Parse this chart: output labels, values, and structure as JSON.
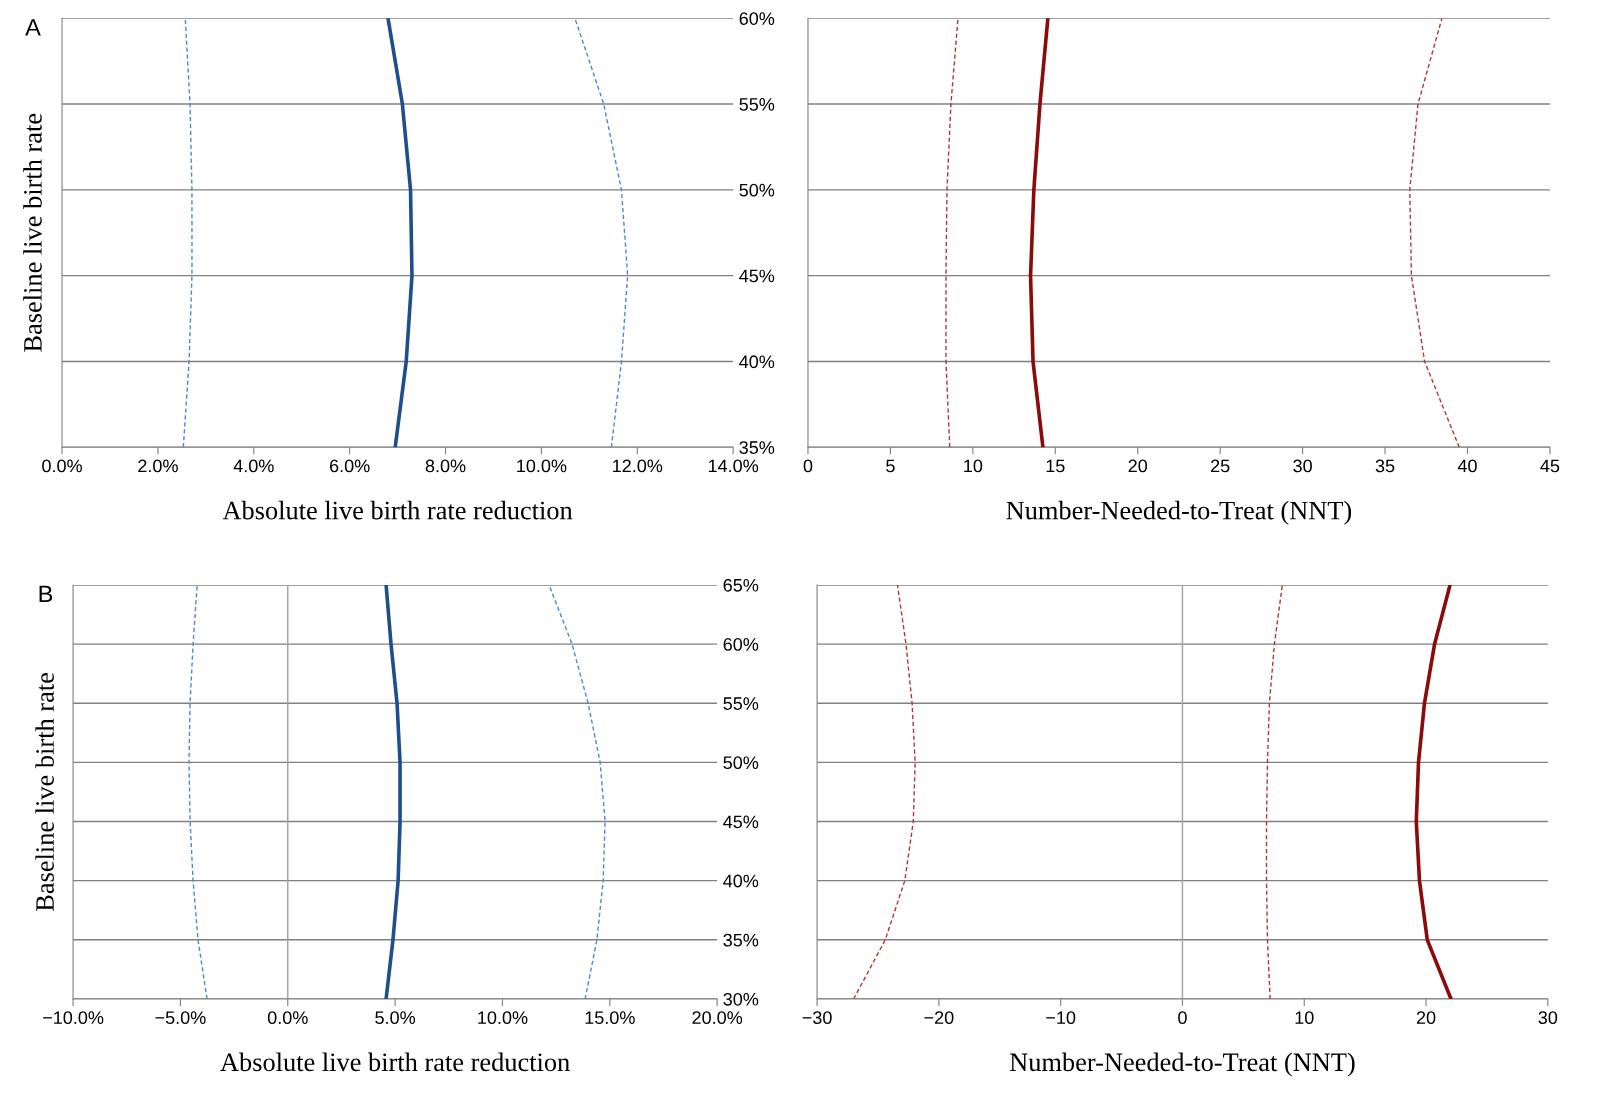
{
  "chart_data": [
    {
      "type": "line",
      "xlabel": "Absolute live birth rate reduction",
      "ylabel": "Baseline live birth rate",
      "annotations": [
        "A"
      ],
      "grid": "y",
      "xlim": [
        0,
        14
      ],
      "ylim": [
        35,
        60
      ],
      "xticks": [
        {
          "value": 0,
          "label": "0.0%"
        },
        {
          "value": 2,
          "label": "2.0%"
        },
        {
          "value": 4,
          "label": "4.0%"
        },
        {
          "value": 6,
          "label": "6.0%"
        },
        {
          "value": 8,
          "label": "8.0%"
        },
        {
          "value": 10,
          "label": "10.0%"
        },
        {
          "value": 12,
          "label": "12.0%"
        },
        {
          "value": 14,
          "label": "14.0%"
        }
      ],
      "yticks": [
        {
          "value": 35,
          "label": "35%"
        },
        {
          "value": 40,
          "label": "40%"
        },
        {
          "value": 45,
          "label": "45%"
        },
        {
          "value": 50,
          "label": "50%"
        },
        {
          "value": 55,
          "label": "55%"
        },
        {
          "value": 60,
          "label": "60%"
        }
      ],
      "series": [
        {
          "color": "#1f4e8c",
          "line_style": "solid",
          "x": [
            6.95,
            7.18,
            7.3,
            7.27,
            7.1,
            6.8
          ],
          "values": [
            35,
            40,
            45,
            50,
            55,
            60
          ]
        },
        {
          "color": "#4a86d8",
          "line_style": "dashed",
          "x": [
            2.53,
            2.65,
            2.71,
            2.71,
            2.67,
            2.57
          ],
          "values": [
            35,
            40,
            45,
            50,
            55,
            60
          ]
        },
        {
          "color": "#4a86d8",
          "line_style": "dashed",
          "x": [
            11.46,
            11.67,
            11.8,
            11.67,
            11.3,
            10.7
          ],
          "values": [
            35,
            40,
            45,
            50,
            55,
            60
          ]
        }
      ]
    },
    {
      "type": "line",
      "xlabel": "Number-Needed-to-Treat (NNT)",
      "grid": "y",
      "tick_labels": "x",
      "xlim": [
        0,
        45
      ],
      "ylim": [
        35,
        60
      ],
      "xticks": [
        0,
        5,
        10,
        15,
        20,
        25,
        30,
        35,
        40,
        45
      ],
      "yticks": [
        35,
        40,
        45,
        50,
        55,
        60
      ],
      "series": [
        {
          "color": "#8b0a0a",
          "line_style": "solid",
          "x": [
            14.25,
            13.65,
            13.5,
            13.7,
            14.07,
            14.55
          ],
          "values": [
            35,
            40,
            45,
            50,
            55,
            60
          ]
        },
        {
          "color": "#b83232",
          "line_style": "dashed",
          "x": [
            8.6,
            8.37,
            8.37,
            8.43,
            8.67,
            9.1
          ],
          "values": [
            35,
            40,
            45,
            50,
            55,
            60
          ]
        },
        {
          "color": "#b83232",
          "line_style": "dashed",
          "x": [
            39.5,
            37.4,
            36.6,
            36.5,
            37.0,
            38.45
          ],
          "values": [
            35,
            40,
            45,
            50,
            55,
            60
          ]
        }
      ]
    },
    {
      "type": "line",
      "xlabel": "Absolute live birth rate reduction",
      "ylabel": "Baseline live birth rate",
      "annotations": [
        "B"
      ],
      "grid": "y",
      "xlim": [
        -10,
        20
      ],
      "ylim": [
        30,
        65
      ],
      "xticks": [
        {
          "value": -10,
          "label": "−10.0%"
        },
        {
          "value": -5,
          "label": "−5.0%"
        },
        {
          "value": 0,
          "label": "0.0%"
        },
        {
          "value": 5,
          "label": "5.0%"
        },
        {
          "value": 10,
          "label": "10.0%"
        },
        {
          "value": 15,
          "label": "15.0%"
        },
        {
          "value": 20,
          "label": "20.0%"
        }
      ],
      "yticks": [
        {
          "value": 30,
          "label": "30%"
        },
        {
          "value": 35,
          "label": "35%"
        },
        {
          "value": 40,
          "label": "40%"
        },
        {
          "value": 45,
          "label": "45%"
        },
        {
          "value": 50,
          "label": "50%"
        },
        {
          "value": 55,
          "label": "55%"
        },
        {
          "value": 60,
          "label": "60%"
        },
        {
          "value": 65,
          "label": "65%"
        }
      ],
      "ref_lines": [
        {
          "axis": "x",
          "value": 0,
          "color": "#a0a0a0"
        }
      ],
      "series": [
        {
          "color": "#1f4e8c",
          "line_style": "solid",
          "x": [
            4.58,
            4.9,
            5.14,
            5.23,
            5.23,
            5.09,
            4.81,
            4.58
          ],
          "values": [
            30,
            35,
            40,
            45,
            50,
            55,
            60,
            65
          ]
        },
        {
          "color": "#4a86d8",
          "line_style": "dashed",
          "x": [
            -3.76,
            -4.18,
            -4.41,
            -4.55,
            -4.6,
            -4.55,
            -4.41,
            -4.22
          ],
          "values": [
            30,
            35,
            40,
            45,
            50,
            55,
            60,
            65
          ]
        },
        {
          "color": "#4a86d8",
          "line_style": "dashed",
          "x": [
            13.85,
            14.4,
            14.69,
            14.78,
            14.55,
            13.99,
            13.24,
            12.17
          ],
          "values": [
            30,
            35,
            40,
            45,
            50,
            55,
            60,
            65
          ]
        }
      ]
    },
    {
      "type": "line",
      "xlabel": "Number-Needed-to-Treat (NNT)",
      "grid": "y",
      "tick_labels": "x",
      "xlim": [
        -30,
        30
      ],
      "ylim": [
        30,
        65
      ],
      "xticks": [
        {
          "value": -30,
          "label": "−30"
        },
        {
          "value": -20,
          "label": "−20"
        },
        {
          "value": -10,
          "label": "−10"
        },
        0,
        10,
        20,
        30
      ],
      "yticks": [
        30,
        35,
        40,
        45,
        50,
        55,
        60,
        65
      ],
      "ref_lines": [
        {
          "axis": "x",
          "value": 0,
          "color": "#a0a0a0"
        }
      ],
      "series": [
        {
          "color": "#8b0a0a",
          "line_style": "solid",
          "x": [
            22.05,
            20.1,
            19.46,
            19.2,
            19.38,
            19.87,
            20.7,
            21.97
          ],
          "values": [
            30,
            35,
            40,
            45,
            50,
            55,
            60,
            65
          ]
        },
        {
          "color": "#b83232",
          "line_style": "dashed",
          "x": [
            7.2,
            6.98,
            6.9,
            6.9,
            6.98,
            7.14,
            7.55,
            8.2
          ],
          "values": [
            30,
            35,
            40,
            45,
            50,
            55,
            60,
            65
          ]
        },
        {
          "color": "#b83232",
          "line_style": "dashed",
          "x": [
            -27.0,
            -24.4,
            -22.8,
            -22.1,
            -21.95,
            -22.2,
            -22.7,
            -23.4
          ],
          "values": [
            30,
            35,
            40,
            45,
            50,
            55,
            60,
            65
          ]
        }
      ]
    }
  ]
}
